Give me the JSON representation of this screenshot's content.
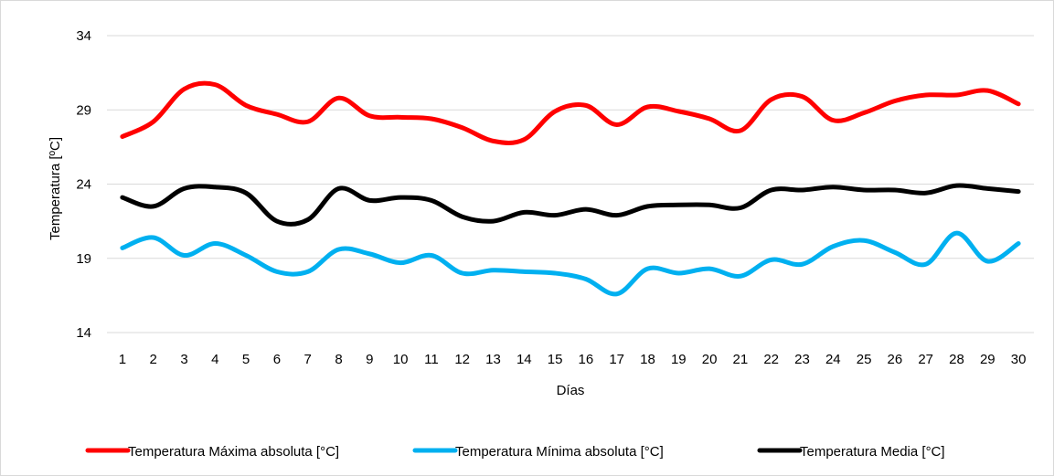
{
  "chart_data": {
    "type": "line",
    "title": "",
    "xlabel": "Días",
    "ylabel": "Temperatura  [ºC]",
    "ylim": [
      14,
      34
    ],
    "yticks": [
      14,
      19,
      24,
      29,
      34
    ],
    "grid": "horizontal",
    "legend_position": "bottom",
    "categories": [
      "1",
      "2",
      "3",
      "4",
      "5",
      "6",
      "7",
      "8",
      "9",
      "10",
      "11",
      "12",
      "13",
      "14",
      "15",
      "16",
      "17",
      "18",
      "19",
      "20",
      "21",
      "22",
      "23",
      "24",
      "25",
      "26",
      "27",
      "28",
      "29",
      "30"
    ],
    "series": [
      {
        "name": "Temperatura Máxima absoluta [°C]",
        "color": "#ff0000",
        "values": [
          27.2,
          28.2,
          30.4,
          30.7,
          29.3,
          28.7,
          28.2,
          29.8,
          28.6,
          28.5,
          28.4,
          27.8,
          26.9,
          27.0,
          28.9,
          29.3,
          28.0,
          29.2,
          28.9,
          28.4,
          27.6,
          29.7,
          29.9,
          28.3,
          28.8,
          29.6,
          30.0,
          30.0,
          30.3,
          29.4
        ]
      },
      {
        "name": "Temperatura Mínima absoluta [°C]",
        "color": "#00b0f0",
        "values": [
          19.7,
          20.4,
          19.2,
          20.0,
          19.2,
          18.1,
          18.1,
          19.6,
          19.3,
          18.7,
          19.2,
          18.0,
          18.2,
          18.1,
          18.0,
          17.6,
          16.6,
          18.3,
          18.0,
          18.3,
          17.8,
          18.9,
          18.6,
          19.8,
          20.2,
          19.4,
          18.6,
          20.7,
          18.8,
          20.0
        ]
      },
      {
        "name": "Temperatura Media [°C]",
        "color": "#000000",
        "values": [
          23.1,
          22.5,
          23.7,
          23.8,
          23.4,
          21.5,
          21.6,
          23.7,
          22.9,
          23.1,
          22.9,
          21.8,
          21.5,
          22.1,
          21.9,
          22.3,
          21.9,
          22.5,
          22.6,
          22.6,
          22.4,
          23.6,
          23.6,
          23.8,
          23.6,
          23.6,
          23.4,
          23.9,
          23.7,
          23.5
        ]
      }
    ]
  }
}
